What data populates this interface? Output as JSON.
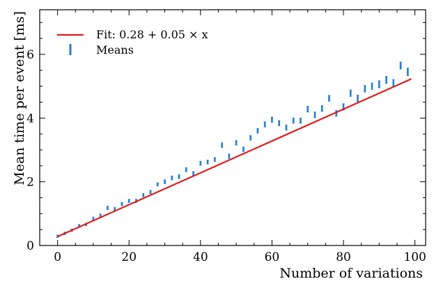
{
  "chart_data": {
    "type": "scatter",
    "xlabel": "Number of variations",
    "ylabel": "Mean time per event [ms]",
    "xlim": [
      -5,
      103
    ],
    "ylim": [
      0,
      7.4
    ],
    "xticks": [
      0,
      20,
      40,
      60,
      80,
      100
    ],
    "yticks": [
      0,
      2,
      4,
      6
    ],
    "xtick_labels": [
      "0",
      "20",
      "40",
      "60",
      "80",
      "100"
    ],
    "ytick_labels": [
      "0",
      "2",
      "4",
      "6"
    ],
    "legend_position": "top-left",
    "grid": false,
    "colors": {
      "fit": "#e31a1c",
      "means": "#1f7fd6"
    },
    "fit": {
      "name": "Fit: 0.28 + 0.05 × x",
      "intercept": 0.28,
      "slope": 0.05,
      "x_range": [
        0,
        99
      ]
    },
    "series": [
      {
        "name": "Means",
        "x": [
          0,
          2,
          4,
          6,
          8,
          10,
          12,
          14,
          16,
          18,
          20,
          22,
          24,
          26,
          28,
          30,
          32,
          34,
          36,
          38,
          40,
          42,
          44,
          46,
          48,
          50,
          52,
          54,
          56,
          58,
          60,
          62,
          64,
          66,
          68,
          70,
          72,
          74,
          76,
          78,
          80,
          82,
          84,
          86,
          88,
          90,
          92,
          94,
          96,
          98
        ],
        "y": [
          0.29,
          0.38,
          0.48,
          0.62,
          0.66,
          0.84,
          0.94,
          1.18,
          1.14,
          1.3,
          1.4,
          1.4,
          1.58,
          1.68,
          1.92,
          2.0,
          2.12,
          2.16,
          2.38,
          2.26,
          2.58,
          2.62,
          2.7,
          3.15,
          2.8,
          3.22,
          3.02,
          3.38,
          3.6,
          3.8,
          3.95,
          3.84,
          3.7,
          3.92,
          3.92,
          4.28,
          4.1,
          4.3,
          4.62,
          4.15,
          4.35,
          4.78,
          4.62,
          4.92,
          5.0,
          5.06,
          5.2,
          5.1,
          5.65,
          5.45
        ],
        "err": [
          0.04,
          0.04,
          0.04,
          0.04,
          0.04,
          0.05,
          0.05,
          0.05,
          0.05,
          0.05,
          0.05,
          0.05,
          0.05,
          0.05,
          0.05,
          0.06,
          0.06,
          0.06,
          0.06,
          0.06,
          0.06,
          0.06,
          0.06,
          0.07,
          0.07,
          0.07,
          0.07,
          0.07,
          0.07,
          0.08,
          0.08,
          0.08,
          0.08,
          0.08,
          0.08,
          0.09,
          0.09,
          0.09,
          0.09,
          0.09,
          0.1,
          0.1,
          0.1,
          0.1,
          0.1,
          0.11,
          0.11,
          0.11,
          0.11,
          0.12
        ]
      }
    ]
  }
}
